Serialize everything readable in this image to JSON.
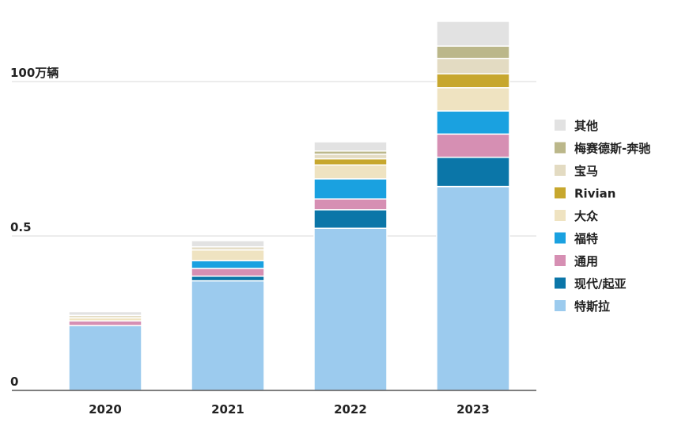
{
  "chart_data": {
    "type": "bar",
    "stacked": true,
    "categories": [
      "2020",
      "2021",
      "2022",
      "2023"
    ],
    "y_ticks": [
      {
        "value": 0,
        "label": "0"
      },
      {
        "value": 0.5,
        "label": "0.5"
      },
      {
        "value": 1.0,
        "label": "100万辆"
      }
    ],
    "ylim": [
      0,
      1.2
    ],
    "grid": true,
    "legend_position": "right",
    "series": [
      {
        "name": "特斯拉",
        "color": "#9ccbee",
        "values": [
          0.21,
          0.355,
          0.525,
          0.66
        ]
      },
      {
        "name": "现代/起亚",
        "color": "#0b76a8",
        "values": [
          0.0,
          0.015,
          0.06,
          0.095
        ]
      },
      {
        "name": "通用",
        "color": "#d68fb3",
        "values": [
          0.015,
          0.025,
          0.035,
          0.075
        ]
      },
      {
        "name": "福特",
        "color": "#1aa1e0",
        "values": [
          0.0,
          0.025,
          0.065,
          0.075
        ]
      },
      {
        "name": "大众",
        "color": "#efe3c1",
        "values": [
          0.01,
          0.035,
          0.045,
          0.075
        ]
      },
      {
        "name": "Rivian",
        "color": "#c7a72e",
        "values": [
          0.0,
          0.0,
          0.02,
          0.045
        ]
      },
      {
        "name": "宝马",
        "color": "#e3dbc2",
        "values": [
          0.008,
          0.01,
          0.015,
          0.05
        ]
      },
      {
        "name": "梅赛德斯-奔驰",
        "color": "#bbb78a",
        "values": [
          0.0,
          0.0,
          0.01,
          0.04
        ]
      },
      {
        "name": "其他",
        "color": "#e2e2e2",
        "values": [
          0.012,
          0.02,
          0.03,
          0.08
        ]
      }
    ]
  }
}
